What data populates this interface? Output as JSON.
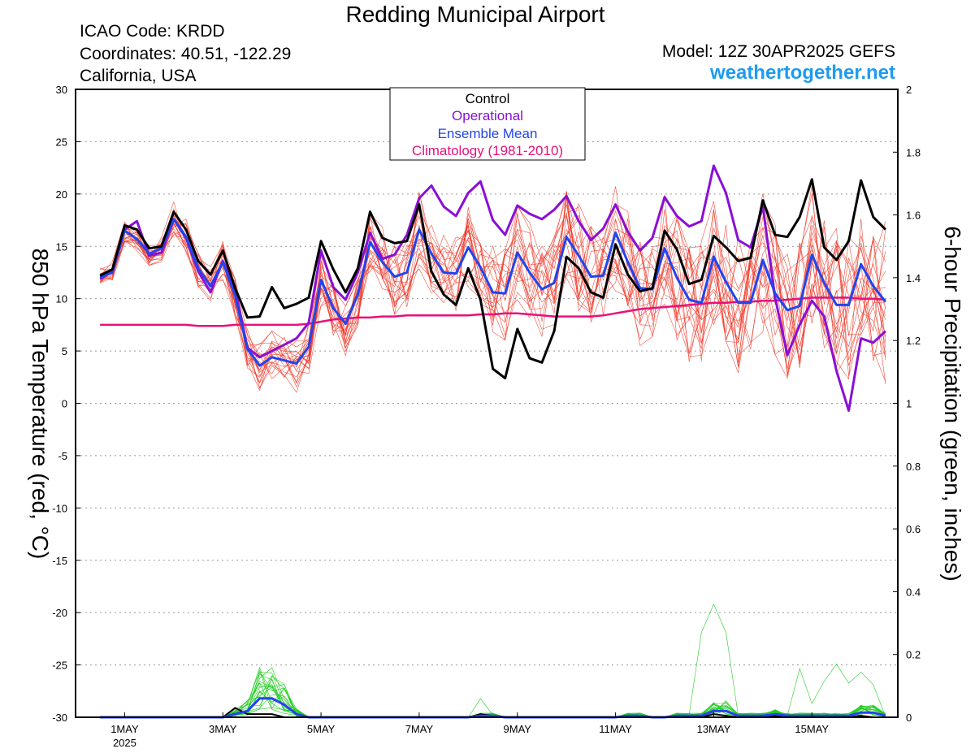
{
  "header": {
    "title": "Redding Municipal Airport",
    "icao": "ICAO Code: KRDD",
    "coords": "Coordinates: 40.51, -122.29",
    "region": "California, USA",
    "model": "Model: 12Z 30APR2025 GEFS",
    "site": "weathertogether.net"
  },
  "chart_data": {
    "type": "line",
    "ylabel": "850 hPa Temperature (red, °C)",
    "y2label": "6-hour Precipitation (green, inches)",
    "ylim": [
      -30,
      30
    ],
    "y2lim": [
      0,
      2
    ],
    "yticks": [
      30,
      25,
      20,
      15,
      10,
      5,
      0,
      -5,
      -10,
      -15,
      -20,
      -25,
      -30
    ],
    "y2ticks": [
      2,
      1.8,
      1.6,
      1.4,
      1.2,
      1,
      0.8,
      0.6,
      0.4,
      0.2,
      0
    ],
    "y2tick_labels": [
      "2",
      "1.8",
      "1.6",
      "1.4",
      "1.2",
      "1",
      "0.8",
      "0.6",
      "0.4",
      "0.2",
      "0"
    ],
    "x_hours_start": 0,
    "x_hours_step": 6,
    "xlim_hours": [
      -12,
      390
    ],
    "xticks": [
      {
        "hour": 12,
        "label": "1MAY",
        "sub": "2025"
      },
      {
        "hour": 60,
        "label": "3MAY",
        "sub": ""
      },
      {
        "hour": 108,
        "label": "5MAY",
        "sub": ""
      },
      {
        "hour": 156,
        "label": "7MAY",
        "sub": ""
      },
      {
        "hour": 204,
        "label": "9MAY",
        "sub": ""
      },
      {
        "hour": 252,
        "label": "11MAY",
        "sub": ""
      },
      {
        "hour": 300,
        "label": "13MAY",
        "sub": ""
      },
      {
        "hour": 348,
        "label": "15MAY",
        "sub": ""
      }
    ],
    "legend": [
      {
        "name": "Control",
        "color": "#000000"
      },
      {
        "name": "Operational",
        "color": "#8a0fd6"
      },
      {
        "name": "Ensemble Mean",
        "color": "#2244ee"
      },
      {
        "name": "Climatology (1981-2010)",
        "color": "#e8107a"
      }
    ],
    "legend_position": "top-center",
    "colors": {
      "member": "#ee3322",
      "precip": "#22cc22",
      "precip_mean": "#2244ee",
      "precip_control": "#000000"
    },
    "series": [
      {
        "name": "Control",
        "color": "#000000",
        "width": 3,
        "values": [
          12.2,
          12.8,
          17.0,
          16.6,
          14.8,
          15.0,
          18.3,
          16.6,
          13.6,
          12.3,
          14.6,
          11.0,
          8.2,
          8.3,
          11.1,
          9.1,
          9.5,
          10.1,
          15.5,
          12.8,
          10.6,
          12.9,
          18.3,
          15.8,
          15.3,
          15.5,
          19.0,
          12.6,
          10.4,
          9.4,
          12.9,
          9.9,
          3.3,
          2.4,
          7.1,
          4.3,
          3.9,
          6.9,
          14.0,
          12.9,
          10.6,
          10.1,
          15.2,
          12.3,
          10.7,
          11.0,
          16.5,
          14.7,
          11.4,
          11.8,
          16.0,
          14.9,
          13.6,
          13.9,
          19.4,
          16.1,
          15.9,
          17.8,
          21.4,
          14.9,
          13.7,
          15.5,
          21.3,
          17.8,
          16.6
        ]
      },
      {
        "name": "Operational",
        "color": "#8a0fd6",
        "width": 3,
        "values": [
          11.9,
          12.6,
          16.6,
          17.4,
          14.1,
          14.4,
          17.6,
          15.8,
          12.6,
          10.6,
          13.6,
          10.9,
          5.3,
          4.4,
          5.0,
          5.6,
          6.2,
          7.7,
          14.6,
          11.1,
          9.9,
          12.5,
          16.3,
          13.8,
          14.2,
          16.1,
          19.6,
          20.8,
          18.8,
          17.9,
          20.1,
          21.2,
          17.5,
          16.1,
          18.9,
          18.1,
          17.6,
          18.5,
          19.8,
          17.4,
          15.6,
          16.7,
          19.0,
          16.4,
          14.6,
          15.8,
          19.7,
          17.9,
          16.9,
          17.4,
          22.7,
          20.1,
          15.6,
          14.9,
          18.8,
          10.1,
          4.6,
          7.5,
          9.8,
          8.3,
          3.1,
          -0.7,
          6.2,
          5.8,
          6.9
        ]
      },
      {
        "name": "Ensemble Mean",
        "color": "#2244ee",
        "width": 3,
        "values": [
          12.0,
          12.5,
          16.5,
          15.7,
          14.3,
          14.8,
          17.6,
          15.9,
          12.9,
          11.2,
          13.5,
          10.3,
          5.2,
          3.6,
          4.4,
          4.1,
          3.8,
          5.4,
          11.8,
          9.1,
          7.6,
          10.4,
          15.4,
          13.5,
          12.1,
          12.5,
          16.6,
          14.3,
          12.5,
          12.4,
          14.9,
          13.0,
          10.6,
          10.5,
          14.4,
          12.5,
          10.9,
          11.5,
          15.9,
          14.1,
          12.1,
          12.2,
          16.3,
          13.5,
          11.0,
          10.9,
          14.8,
          12.0,
          9.9,
          9.6,
          14.0,
          11.6,
          9.6,
          9.6,
          13.7,
          10.5,
          8.9,
          9.3,
          14.2,
          11.5,
          9.4,
          9.4,
          13.3,
          11.2,
          9.7
        ]
      },
      {
        "name": "Climatology (1981-2010)",
        "color": "#e8107a",
        "width": 2.5,
        "values": [
          7.5,
          7.5,
          7.5,
          7.5,
          7.5,
          7.5,
          7.5,
          7.5,
          7.4,
          7.4,
          7.4,
          7.5,
          7.5,
          7.5,
          7.5,
          7.5,
          7.5,
          7.6,
          7.8,
          8.0,
          8.1,
          8.2,
          8.2,
          8.3,
          8.3,
          8.4,
          8.4,
          8.4,
          8.4,
          8.4,
          8.4,
          8.5,
          8.5,
          8.6,
          8.6,
          8.5,
          8.4,
          8.3,
          8.3,
          8.3,
          8.3,
          8.4,
          8.6,
          8.8,
          9.0,
          9.1,
          9.2,
          9.3,
          9.4,
          9.5,
          9.6,
          9.6,
          9.7,
          9.7,
          9.8,
          9.8,
          9.9,
          10.0,
          10.1,
          10.1,
          10.1,
          10.1,
          10.0,
          10.0,
          9.9
        ]
      }
    ],
    "precip_series": [
      {
        "name": "Ensemble Mean",
        "values": [
          0,
          0,
          0,
          0,
          0,
          0,
          0,
          0,
          0,
          0,
          0,
          0.01,
          0.02,
          0.06,
          0.06,
          0.04,
          0.01,
          0,
          0,
          0,
          0,
          0,
          0,
          0,
          0,
          0,
          0,
          0,
          0,
          0,
          0,
          0.005,
          0.005,
          0,
          0,
          0,
          0,
          0,
          0,
          0,
          0,
          0,
          0,
          0.005,
          0.005,
          0,
          0,
          0.005,
          0.005,
          0.005,
          0.02,
          0.02,
          0.005,
          0.005,
          0.005,
          0.01,
          0.005,
          0.005,
          0.005,
          0.005,
          0.005,
          0.005,
          0.015,
          0.015,
          0.005
        ]
      },
      {
        "name": "Control",
        "values": [
          0,
          0,
          0,
          0,
          0,
          0,
          0,
          0,
          0,
          0,
          0,
          0.03,
          0.01,
          0.01,
          0.01,
          0,
          0,
          0,
          0,
          0,
          0,
          0,
          0,
          0,
          0,
          0,
          0,
          0,
          0,
          0,
          0,
          0.01,
          0.005,
          0,
          0,
          0,
          0,
          0,
          0,
          0,
          0,
          0,
          0,
          0,
          0,
          0,
          0,
          0,
          0,
          0,
          0.01,
          0.005,
          0,
          0,
          0,
          0.005,
          0,
          0,
          0,
          0,
          0,
          0,
          0.005,
          0,
          0
        ]
      }
    ]
  }
}
